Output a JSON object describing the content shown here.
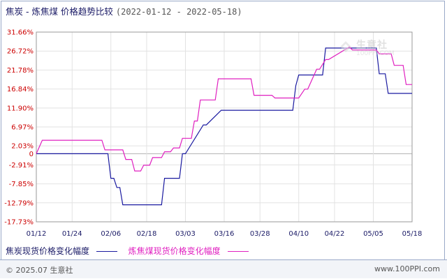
{
  "title": {
    "main": "焦炭 - 炼焦煤 价格趋势比较",
    "range": "(2022-01-12 - 2022-05-18)"
  },
  "chart_data": {
    "type": "line",
    "title": "焦炭 - 炼焦煤 价格趋势比较",
    "xlabel": "",
    "ylabel": "",
    "x_ticks": [
      "01/12",
      "01/24",
      "02/06",
      "02/18",
      "03/03",
      "03/16",
      "03/28",
      "04/10",
      "04/22",
      "05/05",
      "05/18"
    ],
    "y_ticks": [
      "31.66%",
      "26.72%",
      "21.78%",
      "16.84%",
      "11.90%",
      "6.97%",
      "2.03%",
      "0",
      "-2.91%",
      "-7.85%",
      "-12.79%",
      "-17.73%"
    ],
    "y_tick_values": [
      31.66,
      26.72,
      21.78,
      16.84,
      11.9,
      6.97,
      2.03,
      0,
      -2.91,
      -7.85,
      -12.79,
      -17.73
    ],
    "ylim": [
      -17.73,
      31.66
    ],
    "xlim": [
      "2022-01-12",
      "2022-05-18"
    ],
    "grid": true,
    "legend_position": "bottom-left",
    "series": [
      {
        "name": "焦炭现货价格变化幅度",
        "color": "#1a1aa0",
        "x": [
          "2022-01-12",
          "2022-02-05",
          "2022-02-06",
          "2022-02-07",
          "2022-02-08",
          "2022-02-09",
          "2022-02-10",
          "2022-02-23",
          "2022-02-24",
          "2022-03-01",
          "2022-03-02",
          "2022-03-03",
          "2022-03-09",
          "2022-03-10",
          "2022-03-15",
          "2022-03-16",
          "2022-04-08",
          "2022-04-09",
          "2022-04-10",
          "2022-04-18",
          "2022-04-19",
          "2022-04-20",
          "2022-05-06",
          "2022-05-07",
          "2022-05-09",
          "2022-05-10",
          "2022-05-18"
        ],
        "values": [
          0,
          0,
          -6.4,
          -6.4,
          -8.8,
          -8.8,
          -13.3,
          -13.3,
          -6.4,
          -6.4,
          0,
          0,
          7.5,
          7.5,
          11.3,
          11.3,
          11.3,
          17.7,
          20.5,
          20.5,
          27.5,
          27.5,
          27.5,
          20.8,
          20.8,
          15.7,
          15.7
        ]
      },
      {
        "name": "炼焦煤现货价格变化幅度",
        "color": "#e020c0",
        "x": [
          "2022-01-12",
          "2022-01-14",
          "2022-02-03",
          "2022-02-04",
          "2022-02-10",
          "2022-02-11",
          "2022-02-13",
          "2022-02-14",
          "2022-02-16",
          "2022-02-17",
          "2022-02-19",
          "2022-02-20",
          "2022-02-23",
          "2022-02-24",
          "2022-02-26",
          "2022-02-27",
          "2022-03-01",
          "2022-03-02",
          "2022-03-05",
          "2022-03-06",
          "2022-03-07",
          "2022-03-08",
          "2022-03-13",
          "2022-03-14",
          "2022-03-25",
          "2022-03-26",
          "2022-04-01",
          "2022-04-02",
          "2022-04-09",
          "2022-04-10",
          "2022-04-12",
          "2022-04-13",
          "2022-04-16",
          "2022-04-17",
          "2022-04-19",
          "2022-04-20",
          "2022-04-27",
          "2022-04-28",
          "2022-05-06",
          "2022-05-07",
          "2022-05-11",
          "2022-05-12",
          "2022-05-15",
          "2022-05-16",
          "2022-05-18"
        ],
        "values": [
          0,
          3.5,
          3.5,
          1.0,
          1.0,
          -1.5,
          -1.5,
          -4.5,
          -4.5,
          -3.0,
          -3.0,
          -1.0,
          -1.0,
          0.5,
          0.5,
          1.5,
          1.5,
          4.0,
          4.0,
          8.5,
          8.5,
          14.0,
          14.0,
          19.5,
          19.5,
          15.2,
          15.2,
          14.5,
          14.5,
          14.5,
          16.8,
          16.8,
          22.0,
          22.0,
          24.5,
          24.5,
          27.8,
          27.0,
          27.0,
          26.0,
          26.0,
          23.0,
          23.0,
          18.0,
          18.0
        ]
      }
    ]
  },
  "legend": [
    {
      "label": "焦炭现货价格变化幅度",
      "color": "#1a1aa0"
    },
    {
      "label": "炼焦煤现货价格变化幅度",
      "color": "#e020c0"
    }
  ],
  "watermark": {
    "text": "生意社",
    "sub": "100PPI.COM"
  },
  "footer": {
    "copyright": "© 2025.07 生意社",
    "site": "www.100PPI.com"
  }
}
